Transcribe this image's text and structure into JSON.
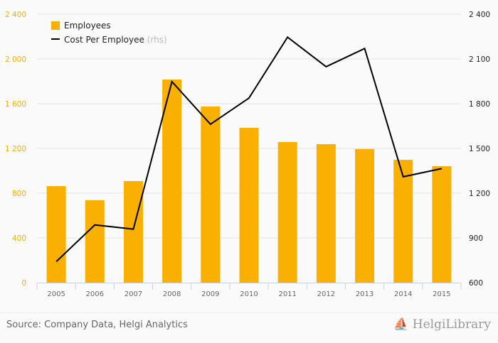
{
  "chart_data": {
    "type": "bar+line",
    "categories": [
      "2005",
      "2006",
      "2007",
      "2008",
      "2009",
      "2010",
      "2011",
      "2012",
      "2013",
      "2014",
      "2015"
    ],
    "series": [
      {
        "name": "Employees",
        "type": "bar",
        "axis": "left",
        "color": "#f9b000",
        "values": [
          863,
          737,
          908,
          1816,
          1575,
          1384,
          1257,
          1238,
          1194,
          1098,
          1041
        ]
      },
      {
        "name": "Cost Per Employee",
        "suffix": "(rhs)",
        "type": "line",
        "axis": "right",
        "color": "#000000",
        "values": [
          741,
          987,
          959,
          1948,
          1662,
          1838,
          2246,
          2048,
          2170,
          1310,
          1365
        ]
      }
    ],
    "left_axis": {
      "range": [
        0,
        2400
      ],
      "ticks": [
        "0",
        "400",
        "800",
        "1 200",
        "1 600",
        "2 000",
        "2 400"
      ],
      "color": "#f9b000"
    },
    "right_axis": {
      "range": [
        600,
        2400
      ],
      "ticks": [
        "600",
        "900",
        "1 200",
        "1 500",
        "1 800",
        "2 100",
        "2 400"
      ]
    },
    "grid": true,
    "legend": "top-left"
  },
  "footer": {
    "source": "Source: Company Data, Helgi Analytics",
    "logo_text": "HelgiLibrary"
  }
}
